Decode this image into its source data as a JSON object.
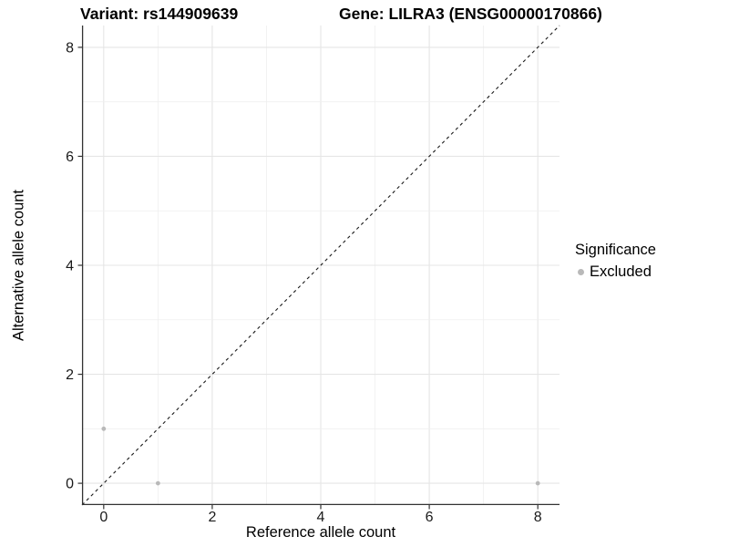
{
  "title": {
    "left": "Variant: rs144909639",
    "right": "Gene: LILRA3 (ENSG00000170866)"
  },
  "chart_data": {
    "type": "scatter",
    "title_left": "Variant: rs144909639",
    "title_right": "Gene: LILRA3 (ENSG00000170866)",
    "xlabel": "Reference allele count",
    "ylabel": "Alternative allele count",
    "xlim": [
      -0.4,
      8.4
    ],
    "ylim": [
      -0.4,
      8.4
    ],
    "x_major_ticks": [
      0,
      2,
      4,
      6,
      8
    ],
    "y_major_ticks": [
      0,
      2,
      4,
      6,
      8
    ],
    "x_gridlines": [
      0,
      1,
      2,
      3,
      4,
      5,
      6,
      7,
      8
    ],
    "y_gridlines": [
      0,
      1,
      2,
      3,
      4,
      5,
      6,
      7,
      8
    ],
    "grid": true,
    "legend_position": "right",
    "reference_line": {
      "type": "identity-diagonal",
      "style": "dashed",
      "color": "#1a1a1a"
    },
    "series": [
      {
        "name": "Excluded",
        "color": "#b9b9b9",
        "points": [
          {
            "x": 0,
            "y": 1
          },
          {
            "x": 1,
            "y": 0
          },
          {
            "x": 8,
            "y": 0
          }
        ]
      }
    ]
  },
  "legend": {
    "title": "Significance",
    "items": [
      {
        "label": "Excluded",
        "color": "#b9b9b9"
      }
    ]
  },
  "colors": {
    "background": "#ffffff",
    "grid_major": "#e5e5e5",
    "grid_minor": "#efefef",
    "axis_line": "#333333",
    "tick_label": "#1a1a1a",
    "point": "#b9b9b9"
  }
}
